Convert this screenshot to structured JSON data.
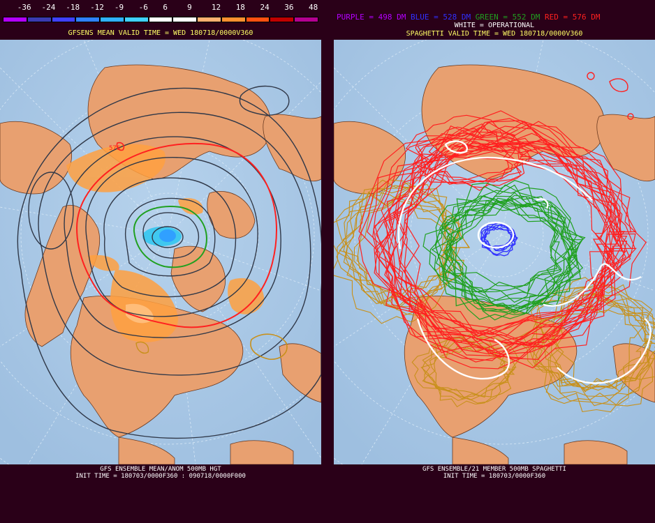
{
  "colorbar": {
    "labels": [
      "-36",
      "-24",
      "-18",
      "-12",
      "-9",
      "-6",
      "6",
      "9",
      "12",
      "18",
      "24",
      "36",
      "48"
    ],
    "colors": [
      "#b400ff",
      "#3a3ab0",
      "#4040ff",
      "#2f80ff",
      "#30b0ff",
      "#40d0ff",
      "#ffffff",
      "#ffffff",
      "#ffb070",
      "#ff9030",
      "#ff5010",
      "#c00000",
      "#b40090"
    ]
  },
  "left_panel": {
    "title": "GFSENS MEAN VALID TIME = WED 180718/0000V360",
    "footer_line1": "GFS ENSEMBLE MEAN/ANOM 500MB HGT",
    "footer_line2": "INIT TIME = 180703/0000F360 : 090718/0000F000",
    "contour_label": "576"
  },
  "right_panel": {
    "legend": [
      {
        "text": "PURPLE = 498 DM",
        "color": "#b400ff"
      },
      {
        "text": "BLUE = 528 DM",
        "color": "#3030ff"
      },
      {
        "text": "GREEN = 552 DM",
        "color": "#20a020"
      },
      {
        "text": "RED = 576 DM",
        "color": "#ff2020"
      }
    ],
    "subtitle": "WHITE = OPERATIONAL",
    "title": "SPAGHETTI VALID TIME = WED 180718/0000V360",
    "footer_line1": "GFS ENSEMBLE/21 MEMBER 500MB SPAGHETTI",
    "footer_line2": "INIT TIME = 180703/0000F360"
  },
  "colors": {
    "ocean": "#a8c8e6",
    "land": "#e8a070",
    "background": "#2a0018",
    "red_contour": "#ff2020",
    "green_contour": "#20a020",
    "blue_contour": "#3030ff",
    "gold_contour": "#c8901a",
    "white_contour": "#ffffff",
    "mean_contour": "#303848"
  }
}
